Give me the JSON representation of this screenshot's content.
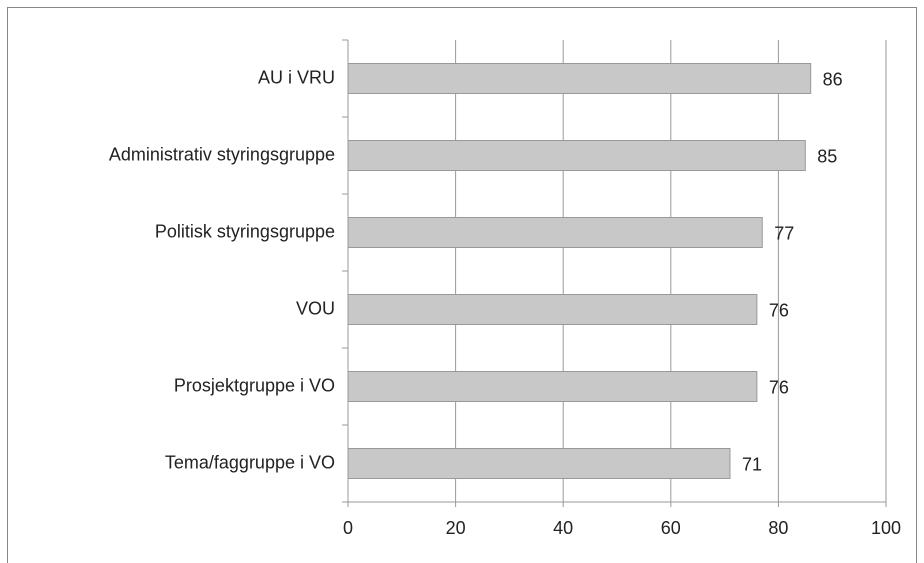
{
  "chart_data": {
    "type": "bar",
    "orientation": "horizontal",
    "categories": [
      "AU i VRU",
      "Administrativ styringsgruppe",
      "Politisk styringsgruppe",
      "VOU",
      "Prosjektgruppe i VO",
      "Tema/faggruppe i VO"
    ],
    "values": [
      86,
      85,
      77,
      76,
      76,
      71
    ],
    "color": "#c8c8c8",
    "xlim": [
      0,
      100
    ],
    "xticks": [
      0,
      20,
      40,
      60,
      80,
      100
    ],
    "grid": true
  }
}
